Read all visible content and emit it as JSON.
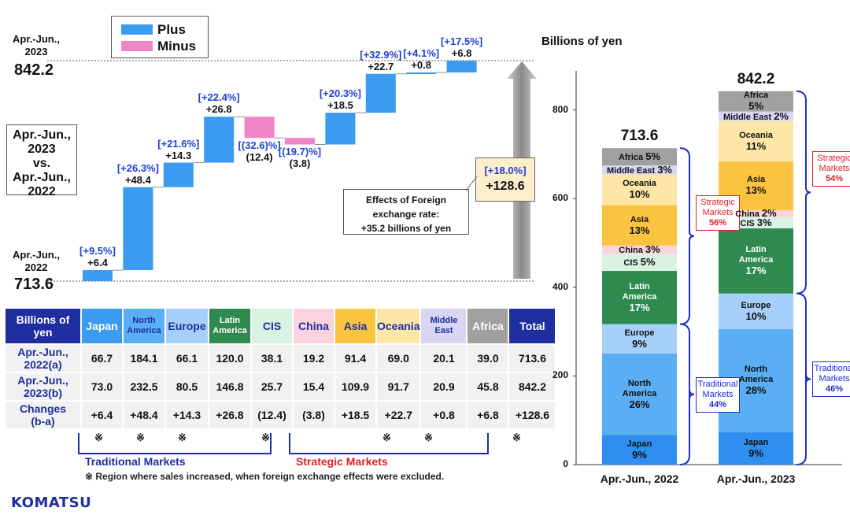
{
  "legend": {
    "plus": "Plus",
    "minus": "Minus",
    "plus_color": "#3a9bf0",
    "minus_color": "#ee86c6"
  },
  "left": {
    "start_period": "Apr.-Jun., 2022",
    "start_value": "713.6",
    "end_period": "Apr.-Jun., 2023",
    "end_value": "842.2",
    "comparison": [
      "Apr.-Jun.,",
      "2023",
      "vs.",
      "Apr.-Jun.,",
      "2022"
    ],
    "total_change_pct": "[+18.0%]",
    "total_change": "+128.6",
    "fx_note": [
      "Effects of Foreign",
      "exchange rate:",
      "+35.2 billions of yen"
    ]
  },
  "chart_data": [
    {
      "type": "bar",
      "subtype": "waterfall",
      "start": 713.6,
      "end": 842.2,
      "categories": [
        "Japan",
        "North America",
        "Europe",
        "Latin America",
        "CIS",
        "China",
        "Asia",
        "Oceania",
        "Middle East",
        "Africa"
      ],
      "values": [
        6.4,
        48.4,
        14.3,
        26.8,
        -12.4,
        -3.8,
        18.5,
        22.7,
        0.8,
        6.8
      ],
      "value_labels": [
        "+6.4",
        "+48.4",
        "+14.3",
        "+26.8",
        "(12.4)",
        "(3.8)",
        "+18.5",
        "+22.7",
        "+0.8",
        "+6.8"
      ],
      "pct_labels": [
        "[+9.5%]",
        "[+26.3%]",
        "[+21.6%]",
        "[+22.4%]",
        "[(32.6)%]",
        "[(19.7)%]",
        "[+20.3%]",
        "[+32.9%]",
        "[+4.1%]",
        "[+17.5%]"
      ]
    },
    {
      "type": "bar",
      "subtype": "stacked",
      "ylabel": "Billions of yen",
      "ylim": [
        0,
        900
      ],
      "yticks": [
        0,
        200,
        400,
        600,
        800
      ],
      "categories": [
        "Apr.-Jun., 2022",
        "Apr.-Jun., 2023"
      ],
      "totals": [
        "713.6",
        "842.2"
      ],
      "total_values": [
        713.6,
        842.2
      ],
      "series": [
        {
          "name": "Japan",
          "pcts": [
            "9%",
            "9%"
          ],
          "values": [
            66.7,
            73.0
          ],
          "color": "#2e8ff0"
        },
        {
          "name": "North America",
          "pcts": [
            "26%",
            "28%"
          ],
          "values": [
            184.1,
            232.5
          ],
          "color": "#5aaef4"
        },
        {
          "name": "Europe",
          "pcts": [
            "9%",
            "10%"
          ],
          "values": [
            66.1,
            80.5
          ],
          "color": "#a6d0fa"
        },
        {
          "name": "Latin America",
          "pcts": [
            "17%",
            "17%"
          ],
          "values": [
            120.0,
            146.8
          ],
          "color": "#2e8a4e"
        },
        {
          "name": "CIS",
          "pcts": [
            "5%",
            "3%"
          ],
          "values": [
            38.1,
            25.7
          ],
          "color": "#d9f2e2"
        },
        {
          "name": "China",
          "pcts": [
            "3%",
            "2%"
          ],
          "values": [
            19.2,
            15.4
          ],
          "color": "#fbd3df"
        },
        {
          "name": "Asia",
          "pcts": [
            "13%",
            "13%"
          ],
          "values": [
            91.4,
            109.9
          ],
          "color": "#fbc440"
        },
        {
          "name": "Oceania",
          "pcts": [
            "10%",
            "11%"
          ],
          "values": [
            69.0,
            91.7
          ],
          "color": "#fde6a6"
        },
        {
          "name": "Middle East",
          "pcts": [
            "3%",
            "2%"
          ],
          "values": [
            20.1,
            20.9
          ],
          "color": "#d8d6f2"
        },
        {
          "name": "Africa",
          "pcts": [
            "5%",
            "5%"
          ],
          "values": [
            39.0,
            45.8
          ],
          "color": "#a0a0a0"
        }
      ],
      "groups": [
        {
          "bar": 0,
          "label": [
            "Traditional",
            "Markets",
            "44%"
          ],
          "kind": "traditional"
        },
        {
          "bar": 0,
          "label": [
            "Strategic",
            "Markets",
            "56%"
          ],
          "kind": "strategic"
        },
        {
          "bar": 1,
          "label": [
            "Traditional",
            "Markets",
            "46%"
          ],
          "kind": "traditional"
        },
        {
          "bar": 1,
          "label": [
            "Strategic",
            "Markets",
            "54%"
          ],
          "kind": "strategic"
        }
      ]
    }
  ],
  "table": {
    "corner": [
      "Billions of",
      "yen"
    ],
    "headers": [
      {
        "label": "Japan",
        "bg": "#3a9bf0"
      },
      {
        "label": "North America",
        "bg": "#5aaef4"
      },
      {
        "label": "Europe",
        "bg": "#a6d0fa"
      },
      {
        "label": "Latin America",
        "bg": "#2e8a4e"
      },
      {
        "label": "CIS",
        "bg": "#d9f2e2"
      },
      {
        "label": "China",
        "bg": "#fbd3df"
      },
      {
        "label": "Asia",
        "bg": "#fbc440"
      },
      {
        "label": "Oceania",
        "bg": "#fde6a6"
      },
      {
        "label": "Middle East",
        "bg": "#d8d6f2"
      },
      {
        "label": "Africa",
        "bg": "#a0a0a0"
      },
      {
        "label": "Total",
        "bg": "#1e2e9e"
      }
    ],
    "rows": [
      {
        "label": [
          "Apr.-Jun.,",
          "2022(a)"
        ],
        "cells": [
          "66.7",
          "184.1",
          "66.1",
          "120.0",
          "38.1",
          "19.2",
          "91.4",
          "69.0",
          "20.1",
          "39.0",
          "713.6"
        ]
      },
      {
        "label": [
          "Apr.-Jun.,",
          "2023(b)"
        ],
        "cells": [
          "73.0",
          "232.5",
          "80.5",
          "146.8",
          "25.7",
          "15.4",
          "109.9",
          "91.7",
          "20.9",
          "45.8",
          "842.2"
        ]
      },
      {
        "label": [
          "Changes",
          "(b-a)"
        ],
        "cells": [
          "+6.4",
          "+48.4",
          "+14.3",
          "+26.8",
          "(12.4)",
          "(3.8)",
          "+18.5",
          "+22.7",
          "+0.8",
          "+6.8",
          "+128.6"
        ]
      }
    ],
    "marks": [
      "※",
      "※",
      "※",
      "",
      "※",
      "",
      "",
      "※",
      "※",
      "",
      "※"
    ]
  },
  "footer": {
    "traditional": "Traditional Markets",
    "strategic": "Strategic Markets",
    "note": "※ Region where sales increased, when foreign exchange effects were excluded.",
    "logo": "KOMATSU"
  }
}
